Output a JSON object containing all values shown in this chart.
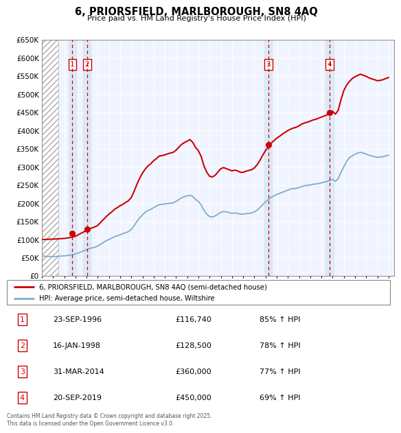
{
  "title": "6, PRIORSFIELD, MARLBOROUGH, SN8 4AQ",
  "subtitle": "Price paid vs. HM Land Registry's House Price Index (HPI)",
  "ylim": [
    0,
    650000
  ],
  "yticks": [
    0,
    50000,
    100000,
    150000,
    200000,
    250000,
    300000,
    350000,
    400000,
    450000,
    500000,
    550000,
    600000,
    650000
  ],
  "xmin": 1994.0,
  "xmax": 2025.5,
  "sales": [
    {
      "num": 1,
      "date_str": "23-SEP-1996",
      "date_x": 1996.73,
      "price": 116740,
      "pct": "85%"
    },
    {
      "num": 2,
      "date_str": "16-JAN-1998",
      "date_x": 1998.04,
      "price": 128500,
      "pct": "78%"
    },
    {
      "num": 3,
      "date_str": "31-MAR-2014",
      "date_x": 2014.25,
      "price": 360000,
      "pct": "77%"
    },
    {
      "num": 4,
      "date_str": "20-SEP-2019",
      "date_x": 2019.72,
      "price": 450000,
      "pct": "69%"
    }
  ],
  "legend_line1": "6, PRIORSFIELD, MARLBOROUGH, SN8 4AQ (semi-detached house)",
  "legend_line2": "HPI: Average price, semi-detached house, Wiltshire",
  "footer": "Contains HM Land Registry data © Crown copyright and database right 2025.\nThis data is licensed under the Open Government Licence v3.0.",
  "red_color": "#cc0000",
  "blue_color": "#7aadcc",
  "hatch_end": 1995.5,
  "hpi_data_x": [
    1994.0,
    1994.25,
    1994.5,
    1994.75,
    1995.0,
    1995.25,
    1995.5,
    1995.75,
    1996.0,
    1996.25,
    1996.5,
    1996.75,
    1997.0,
    1997.25,
    1997.5,
    1997.75,
    1998.0,
    1998.25,
    1998.5,
    1998.75,
    1999.0,
    1999.25,
    1999.5,
    1999.75,
    2000.0,
    2000.25,
    2000.5,
    2000.75,
    2001.0,
    2001.25,
    2001.5,
    2001.75,
    2002.0,
    2002.25,
    2002.5,
    2002.75,
    2003.0,
    2003.25,
    2003.5,
    2003.75,
    2004.0,
    2004.25,
    2004.5,
    2004.75,
    2005.0,
    2005.25,
    2005.5,
    2005.75,
    2006.0,
    2006.25,
    2006.5,
    2006.75,
    2007.0,
    2007.25,
    2007.5,
    2007.75,
    2008.0,
    2008.25,
    2008.5,
    2008.75,
    2009.0,
    2009.25,
    2009.5,
    2009.75,
    2010.0,
    2010.25,
    2010.5,
    2010.75,
    2011.0,
    2011.25,
    2011.5,
    2011.75,
    2012.0,
    2012.25,
    2012.5,
    2012.75,
    2013.0,
    2013.25,
    2013.5,
    2013.75,
    2014.0,
    2014.25,
    2014.5,
    2014.75,
    2015.0,
    2015.25,
    2015.5,
    2015.75,
    2016.0,
    2016.25,
    2016.5,
    2016.75,
    2017.0,
    2017.25,
    2017.5,
    2017.75,
    2018.0,
    2018.25,
    2018.5,
    2018.75,
    2019.0,
    2019.25,
    2019.5,
    2019.75,
    2020.0,
    2020.25,
    2020.5,
    2020.75,
    2021.0,
    2021.25,
    2021.5,
    2021.75,
    2022.0,
    2022.25,
    2022.5,
    2022.75,
    2023.0,
    2023.25,
    2023.5,
    2023.75,
    2024.0,
    2024.25,
    2024.5,
    2024.75,
    2025.0
  ],
  "hpi_data_y": [
    55000,
    54000,
    53000,
    53500,
    53000,
    53500,
    54000,
    54500,
    55000,
    56000,
    57000,
    58000,
    60000,
    63000,
    66000,
    69000,
    72000,
    75000,
    77000,
    79000,
    82000,
    87000,
    92000,
    97000,
    100000,
    104000,
    108000,
    110000,
    113000,
    116000,
    119000,
    122000,
    128000,
    138000,
    150000,
    160000,
    168000,
    175000,
    180000,
    183000,
    188000,
    192000,
    196000,
    197000,
    198000,
    199000,
    200000,
    201000,
    205000,
    210000,
    215000,
    218000,
    220000,
    222000,
    218000,
    210000,
    205000,
    195000,
    180000,
    170000,
    163000,
    162000,
    165000,
    170000,
    175000,
    177000,
    176000,
    174000,
    172000,
    173000,
    172000,
    170000,
    170000,
    171000,
    172000,
    173000,
    176000,
    181000,
    188000,
    196000,
    204000,
    210000,
    216000,
    220000,
    224000,
    227000,
    230000,
    233000,
    236000,
    239000,
    240000,
    241000,
    243000,
    246000,
    248000,
    249000,
    250000,
    252000,
    253000,
    254000,
    256000,
    258000,
    260000,
    263000,
    265000,
    260000,
    268000,
    285000,
    300000,
    315000,
    325000,
    330000,
    335000,
    338000,
    340000,
    338000,
    335000,
    332000,
    330000,
    328000,
    326000,
    327000,
    328000,
    330000,
    332000
  ],
  "prop_data_x": [
    1994.0,
    1994.25,
    1994.5,
    1994.75,
    1995.0,
    1995.25,
    1995.5,
    1995.75,
    1996.0,
    1996.25,
    1996.5,
    1996.75,
    1997.0,
    1997.25,
    1997.5,
    1997.75,
    1998.0,
    1998.25,
    1998.5,
    1998.75,
    1999.0,
    1999.25,
    1999.5,
    1999.75,
    2000.0,
    2000.25,
    2000.5,
    2000.75,
    2001.0,
    2001.25,
    2001.5,
    2001.75,
    2002.0,
    2002.25,
    2002.5,
    2002.75,
    2003.0,
    2003.25,
    2003.5,
    2003.75,
    2004.0,
    2004.25,
    2004.5,
    2004.75,
    2005.0,
    2005.25,
    2005.5,
    2005.75,
    2006.0,
    2006.25,
    2006.5,
    2006.75,
    2007.0,
    2007.25,
    2007.5,
    2007.75,
    2008.0,
    2008.25,
    2008.5,
    2008.75,
    2009.0,
    2009.25,
    2009.5,
    2009.75,
    2010.0,
    2010.25,
    2010.5,
    2010.75,
    2011.0,
    2011.25,
    2011.5,
    2011.75,
    2012.0,
    2012.25,
    2012.5,
    2012.75,
    2013.0,
    2013.25,
    2013.5,
    2013.75,
    2014.0,
    2014.25,
    2014.5,
    2014.75,
    2015.0,
    2015.25,
    2015.5,
    2015.75,
    2016.0,
    2016.25,
    2016.5,
    2016.75,
    2017.0,
    2017.25,
    2017.5,
    2017.75,
    2018.0,
    2018.25,
    2018.5,
    2018.75,
    2019.0,
    2019.25,
    2019.5,
    2019.75,
    2020.0,
    2020.25,
    2020.5,
    2020.75,
    2021.0,
    2021.25,
    2021.5,
    2021.75,
    2022.0,
    2022.25,
    2022.5,
    2022.75,
    2023.0,
    2023.25,
    2023.5,
    2023.75,
    2024.0,
    2024.25,
    2024.5,
    2024.75,
    2025.0
  ],
  "prop_data_y": [
    100000,
    100000,
    100500,
    101000,
    101000,
    101500,
    102000,
    102500,
    103000,
    104000,
    105500,
    107000,
    109000,
    113000,
    117000,
    121000,
    125000,
    129000,
    132000,
    135000,
    139000,
    147000,
    155000,
    163000,
    170000,
    176000,
    183000,
    188000,
    193000,
    197000,
    202000,
    207000,
    216000,
    233000,
    252000,
    269000,
    283000,
    294000,
    303000,
    309000,
    317000,
    323000,
    330000,
    331000,
    333000,
    336000,
    338000,
    340000,
    346000,
    354000,
    362000,
    367000,
    371000,
    375000,
    367000,
    353000,
    344000,
    328000,
    302000,
    285000,
    274000,
    272000,
    277000,
    286000,
    295000,
    298000,
    295000,
    292000,
    289000,
    291000,
    289000,
    285000,
    285000,
    288000,
    290000,
    292000,
    297000,
    306000,
    318000,
    332000,
    345000,
    355000,
    365000,
    372000,
    379000,
    384000,
    390000,
    395000,
    400000,
    404000,
    407000,
    409000,
    413000,
    418000,
    421000,
    423000,
    426000,
    429000,
    431000,
    434000,
    437000,
    440000,
    443000,
    448000,
    453000,
    445000,
    456000,
    485000,
    510000,
    525000,
    535000,
    543000,
    548000,
    552000,
    555000,
    552000,
    549000,
    545000,
    542000,
    540000,
    537000,
    538000,
    540000,
    543000,
    546000
  ],
  "table_rows": [
    [
      1,
      "23-SEP-1996",
      "£116,740",
      "85% ↑ HPI"
    ],
    [
      2,
      "16-JAN-1998",
      "£128,500",
      "78% ↑ HPI"
    ],
    [
      3,
      "31-MAR-2014",
      "£360,000",
      "77% ↑ HPI"
    ],
    [
      4,
      "20-SEP-2019",
      "£450,000",
      "69% ↑ HPI"
    ]
  ]
}
